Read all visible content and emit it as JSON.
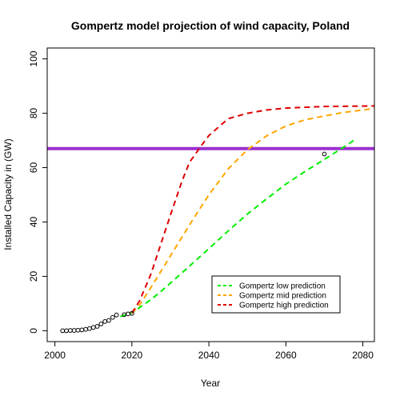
{
  "chart_data": {
    "type": "line",
    "title": "Gompertz model projection of wind capacity, Poland",
    "xlabel": "Year",
    "ylabel": "Installed Capacity in (GW)",
    "xlim": [
      1998,
      2083
    ],
    "ylim": [
      -4,
      104
    ],
    "x_ticks": [
      2000,
      2020,
      2040,
      2060,
      2080
    ],
    "y_ticks": [
      0,
      20,
      40,
      60,
      80,
      100
    ],
    "grid": false,
    "legend_position": "bottom-right",
    "observed_points": {
      "x": [
        2002,
        2003,
        2004,
        2005,
        2006,
        2007,
        2008,
        2009,
        2010,
        2011,
        2012,
        2013,
        2014,
        2015,
        2016,
        2018,
        2019,
        2020,
        2070
      ],
      "y": [
        0.0,
        0.0,
        0.1,
        0.1,
        0.2,
        0.3,
        0.5,
        0.8,
        1.2,
        1.6,
        2.5,
        3.4,
        3.8,
        4.9,
        5.8,
        5.9,
        6.2,
        6.4,
        65.0
      ]
    },
    "reference_line": {
      "y": 67,
      "color": "#9B30D0"
    },
    "series": [
      {
        "name": "Gompertz low prediction",
        "color": "#00EE00",
        "x": [
          2017,
          2020,
          2022,
          2025,
          2028,
          2030,
          2035,
          2040,
          2045,
          2050,
          2055,
          2060,
          2065,
          2070,
          2075,
          2078
        ],
        "y": [
          5.2,
          6.6,
          8.5,
          11.5,
          15.0,
          17.5,
          23.8,
          30.2,
          36.7,
          42.9,
          48.5,
          53.9,
          58.6,
          63.0,
          67.5,
          70.3
        ]
      },
      {
        "name": "Gompertz mid prediction",
        "color": "#FFA500",
        "x": [
          2020,
          2022,
          2025,
          2030,
          2035,
          2040,
          2045,
          2050,
          2055,
          2060,
          2065,
          2070,
          2075,
          2080,
          2083
        ],
        "y": [
          6.5,
          9.5,
          16.0,
          27.5,
          39.0,
          50.0,
          59.5,
          66.6,
          71.7,
          75.3,
          77.6,
          79.0,
          80.3,
          81.2,
          81.8
        ]
      },
      {
        "name": "Gompertz high prediction",
        "color": "#DD0000",
        "x": [
          2020,
          2022,
          2025,
          2028,
          2030,
          2033,
          2035,
          2038,
          2040,
          2043,
          2045,
          2050,
          2055,
          2060,
          2070,
          2083
        ],
        "y": [
          6.5,
          11.0,
          21.0,
          34.0,
          42.5,
          55.0,
          62.0,
          68.0,
          71.8,
          75.5,
          78.0,
          80.0,
          81.2,
          81.9,
          82.5,
          82.7
        ]
      }
    ]
  }
}
